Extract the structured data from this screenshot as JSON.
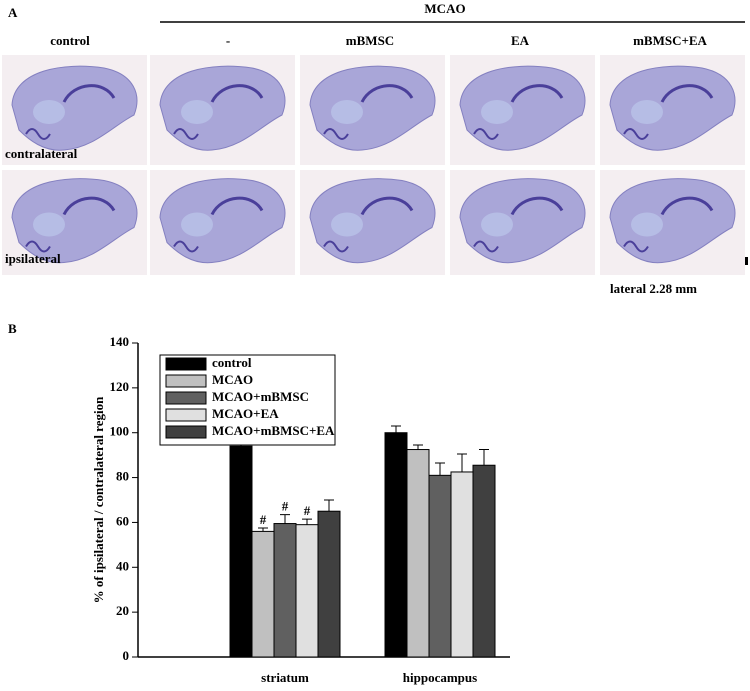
{
  "figure": {
    "panel_a": "A",
    "group_header": "MCAO",
    "columns": [
      "control",
      "-",
      "mBMSC",
      "EA",
      "mBMSC+EA"
    ],
    "rows": [
      "contralateral",
      "ipsilateral"
    ],
    "scale_note": "lateral 2.28 mm"
  },
  "chart_data": {
    "type": "bar",
    "panel": "B",
    "y_label": "% of ipsilateral / contralateral region",
    "categories": [
      "striatum",
      "hippocampus"
    ],
    "ylim": [
      0,
      140
    ],
    "yticks": [
      0,
      20,
      40,
      60,
      80,
      100,
      120,
      140
    ],
    "legend": "upper left",
    "series": [
      {
        "name": "control",
        "color": "#000000",
        "values": [
          94,
          100
        ],
        "errors": [
          2,
          3
        ],
        "markers": [
          null,
          null
        ]
      },
      {
        "name": "MCAO",
        "color": "#c0c0c0",
        "values": [
          56,
          92.5
        ],
        "errors": [
          1.5,
          2
        ],
        "markers": [
          "#",
          null
        ]
      },
      {
        "name": "MCAO+mBMSC",
        "color": "#606060",
        "values": [
          59.5,
          81
        ],
        "errors": [
          4,
          5.5
        ],
        "markers": [
          "#",
          null
        ]
      },
      {
        "name": "MCAO+EA",
        "color": "#e0e0e0",
        "values": [
          59,
          82.5
        ],
        "errors": [
          2.5,
          8
        ],
        "markers": [
          "#",
          null
        ]
      },
      {
        "name": "MCAO+mBMSC+EA",
        "color": "#404040",
        "values": [
          65,
          85.5
        ],
        "errors": [
          5,
          7
        ],
        "markers": [
          null,
          null
        ]
      }
    ]
  }
}
